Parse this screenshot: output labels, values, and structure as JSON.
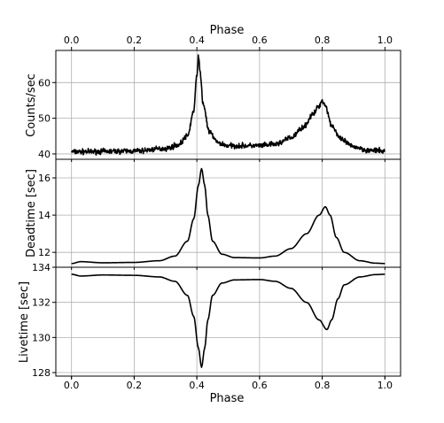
{
  "chart_data": {
    "type": "line",
    "shared_x": {
      "label_top": "Phase",
      "label_bottom": "Phase",
      "xlim": [
        -0.05,
        1.05
      ],
      "ticks": [
        0.0,
        0.2,
        0.4,
        0.6,
        0.8,
        1.0
      ],
      "tick_labels": [
        "0.0",
        "0.2",
        "0.4",
        "0.6",
        "0.8",
        "1.0"
      ],
      "grid": true
    },
    "panels": [
      {
        "ylabel": "Counts/sec",
        "ylim": [
          38.5,
          69
        ],
        "yticks": [
          40,
          50,
          60
        ],
        "ytick_labels": [
          "40",
          "50",
          "60"
        ],
        "noisy": true,
        "profile": {
          "baseline": [
            [
              0.0,
              40.6
            ],
            [
              0.2,
              40.8
            ],
            [
              0.3,
              41.5
            ],
            [
              0.34,
              42.5
            ],
            [
              0.37,
              45
            ],
            [
              0.39,
              52
            ],
            [
              0.4,
              62
            ],
            [
              0.405,
              67.5
            ],
            [
              0.41,
              63
            ],
            [
              0.42,
              54
            ],
            [
              0.44,
              46
            ],
            [
              0.47,
              43
            ],
            [
              0.5,
              42.3
            ],
            [
              0.6,
              42.3
            ],
            [
              0.65,
              42.7
            ],
            [
              0.7,
              44.5
            ],
            [
              0.74,
              47.5
            ],
            [
              0.77,
              51
            ],
            [
              0.79,
              53.5
            ],
            [
              0.8,
              55
            ],
            [
              0.81,
              53.5
            ],
            [
              0.83,
              48
            ],
            [
              0.86,
              44
            ],
            [
              0.9,
              42
            ],
            [
              0.95,
              41
            ],
            [
              1.0,
              40.8
            ]
          ]
        }
      },
      {
        "ylabel": "Deadtime [sec]",
        "ylim": [
          11.2,
          17.0
        ],
        "yticks": [
          12,
          14,
          16
        ],
        "ytick_labels": [
          "12",
          "14",
          "16"
        ],
        "noisy": false,
        "profile": {
          "baseline": [
            [
              0.0,
              11.4
            ],
            [
              0.03,
              11.5
            ],
            [
              0.1,
              11.44
            ],
            [
              0.2,
              11.46
            ],
            [
              0.28,
              11.55
            ],
            [
              0.33,
              11.8
            ],
            [
              0.37,
              12.6
            ],
            [
              0.39,
              13.8
            ],
            [
              0.405,
              15.6
            ],
            [
              0.415,
              16.5
            ],
            [
              0.425,
              15.6
            ],
            [
              0.435,
              14.0
            ],
            [
              0.45,
              12.6
            ],
            [
              0.48,
              11.9
            ],
            [
              0.52,
              11.72
            ],
            [
              0.6,
              11.7
            ],
            [
              0.65,
              11.8
            ],
            [
              0.7,
              12.2
            ],
            [
              0.75,
              13.0
            ],
            [
              0.79,
              14.0
            ],
            [
              0.81,
              14.45
            ],
            [
              0.825,
              14.0
            ],
            [
              0.845,
              12.8
            ],
            [
              0.87,
              12.0
            ],
            [
              0.92,
              11.55
            ],
            [
              0.97,
              11.42
            ],
            [
              1.0,
              11.4
            ]
          ]
        }
      },
      {
        "ylabel": "Livetime [sec]",
        "ylim": [
          127.8,
          134.0
        ],
        "yticks": [
          128,
          130,
          132,
          134
        ],
        "ytick_labels": [
          "128",
          "130",
          "132",
          "134"
        ],
        "noisy": false,
        "profile": {
          "baseline": [
            [
              0.0,
              133.6
            ],
            [
              0.03,
              133.5
            ],
            [
              0.1,
              133.56
            ],
            [
              0.2,
              133.54
            ],
            [
              0.28,
              133.45
            ],
            [
              0.33,
              133.2
            ],
            [
              0.37,
              132.4
            ],
            [
              0.39,
              131.2
            ],
            [
              0.405,
              129.4
            ],
            [
              0.415,
              128.3
            ],
            [
              0.425,
              129.4
            ],
            [
              0.435,
              131.0
            ],
            [
              0.45,
              132.4
            ],
            [
              0.48,
              133.1
            ],
            [
              0.52,
              133.28
            ],
            [
              0.6,
              133.3
            ],
            [
              0.65,
              133.2
            ],
            [
              0.7,
              132.8
            ],
            [
              0.75,
              132.0
            ],
            [
              0.79,
              131.0
            ],
            [
              0.815,
              130.45
            ],
            [
              0.83,
              131.0
            ],
            [
              0.85,
              132.2
            ],
            [
              0.87,
              133.0
            ],
            [
              0.92,
              133.45
            ],
            [
              0.97,
              133.58
            ],
            [
              1.0,
              133.6
            ]
          ]
        }
      }
    ]
  }
}
